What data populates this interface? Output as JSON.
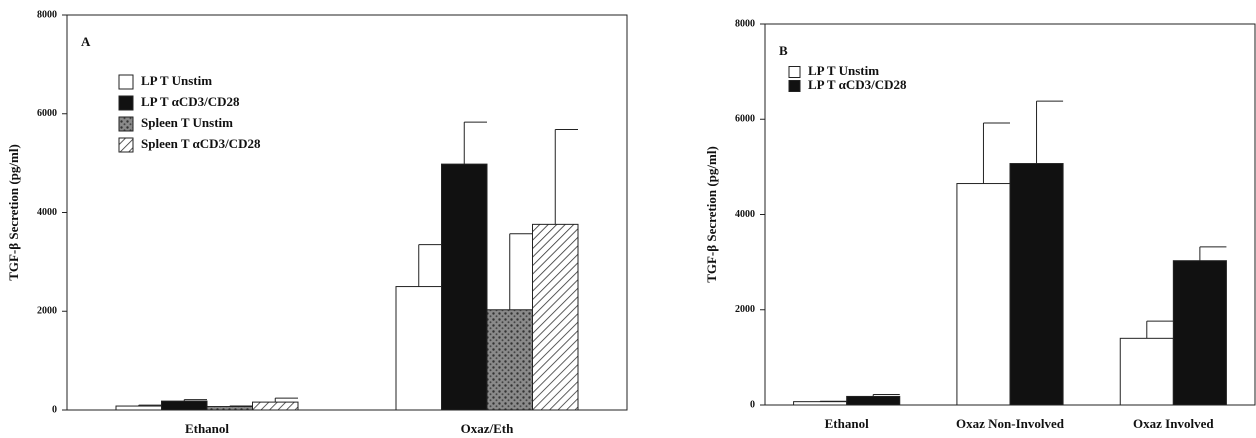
{
  "chart_data": [
    {
      "type": "bar",
      "title": "A",
      "y_label": "TGF-β Secretion (pg/ml)",
      "categories": [
        "Ethanol",
        "Oxaz/Eth"
      ],
      "series": [
        {
          "name": "LP T Unstim",
          "color": "#ffffff",
          "pattern": "solid",
          "values": [
            80,
            2500
          ],
          "errors": [
            20,
            850
          ]
        },
        {
          "name": "LP T αCD3/CD28",
          "color": "#111111",
          "pattern": "solid",
          "values": [
            180,
            4980
          ],
          "errors": [
            30,
            850
          ]
        },
        {
          "name": "Spleen T Unstim",
          "color": "#8a8a8a",
          "pattern": "stipple",
          "values": [
            70,
            2030
          ],
          "errors": [
            10,
            1540
          ]
        },
        {
          "name": "Spleen T αCD3/CD28",
          "color": "#ffffff",
          "pattern": "hatch",
          "values": [
            160,
            3760
          ],
          "errors": [
            80,
            1920
          ]
        }
      ],
      "ylim": [
        0,
        8000
      ],
      "yticks": [
        0,
        2000,
        4000,
        6000,
        8000
      ]
    },
    {
      "type": "bar",
      "title": "B",
      "y_label": "TGF-β Secretion (pg/ml)",
      "categories": [
        "Ethanol",
        "Oxaz Non-Involved",
        "Oxaz Involved"
      ],
      "series": [
        {
          "name": "LP T Unstim",
          "color": "#ffffff",
          "pattern": "solid",
          "values": [
            70,
            4650,
            1400
          ],
          "errors": [
            10,
            1270,
            360
          ]
        },
        {
          "name": "LP T αCD3/CD28",
          "color": "#111111",
          "pattern": "solid",
          "values": [
            180,
            5070,
            3030
          ],
          "errors": [
            40,
            1310,
            290
          ]
        }
      ],
      "ylim": [
        0,
        8000
      ],
      "yticks": [
        0,
        2000,
        4000,
        6000,
        8000
      ]
    }
  ]
}
